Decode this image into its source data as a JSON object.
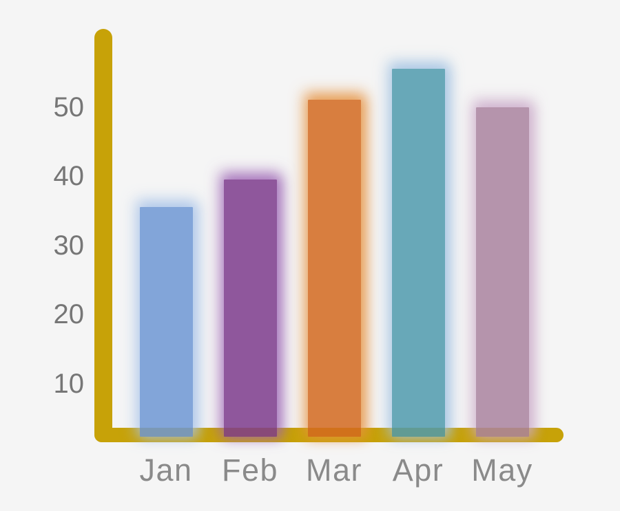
{
  "chart_data": {
    "type": "bar",
    "title": "",
    "xlabel": "",
    "ylabel": "",
    "categories": [
      "Jan",
      "Feb",
      "Mar",
      "Apr",
      "May"
    ],
    "values": [
      35.5,
      39.5,
      51,
      55.5,
      50
    ],
    "y_ticks": [
      10,
      20,
      30,
      40,
      50
    ],
    "ylim": [
      0,
      60
    ],
    "grid": false,
    "legend": false,
    "background_color": "#F5F5F5",
    "axis_color": "#C7A208",
    "tick_label_color": "#767676",
    "category_label_color": "#8A8A8A",
    "bar_alpha": 0.85,
    "series": [
      {
        "category": "Jan",
        "value": 35.5,
        "color": "#6D96D3",
        "glow_color": "#A6C2E8"
      },
      {
        "category": "Feb",
        "value": 39.5,
        "color": "#7C3B8C",
        "glow_color": "#9C64B4"
      },
      {
        "category": "Mar",
        "value": 51,
        "color": "#D2691E",
        "glow_color": "#E6913F"
      },
      {
        "category": "Apr",
        "value": 55.5,
        "color": "#4F9AAD",
        "glow_color": "#9FC0E2"
      },
      {
        "category": "May",
        "value": 50,
        "color": "#A9839F",
        "glow_color": "#C9A8C8"
      }
    ]
  }
}
